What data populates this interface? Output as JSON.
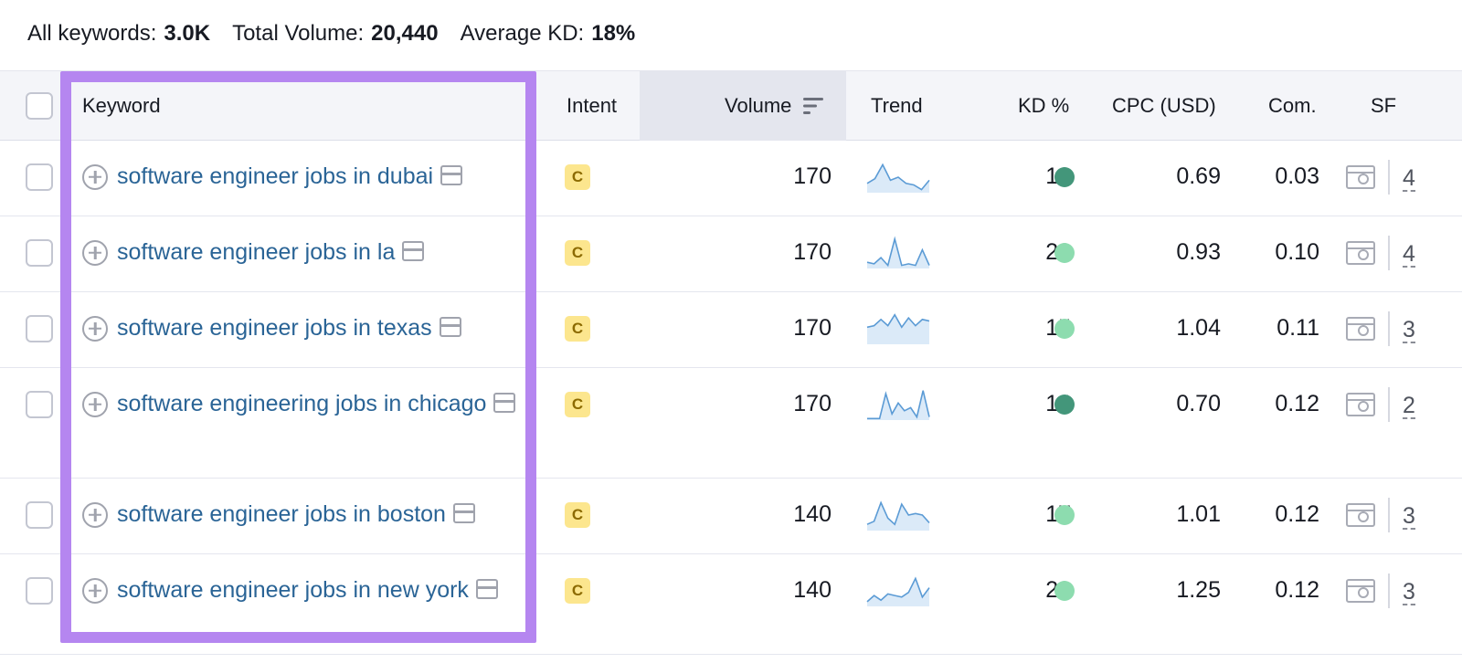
{
  "summary": {
    "all_keywords_label": "All keywords:",
    "all_keywords_value": "3.0K",
    "total_volume_label": "Total Volume:",
    "total_volume_value": "20,440",
    "average_kd_label": "Average KD:",
    "average_kd_value": "18%"
  },
  "columns": {
    "keyword": "Keyword",
    "intent": "Intent",
    "volume": "Volume",
    "trend": "Trend",
    "kd": "KD %",
    "cpc": "CPC (USD)",
    "com": "Com.",
    "sf": "SF"
  },
  "colors": {
    "kd_dark": "#43967a",
    "kd_light": "#8ddcaf",
    "highlight": "#b586f0",
    "link": "#2a6496"
  },
  "rows": [
    {
      "keyword": "software engineer jobs in dubai",
      "intent": "C",
      "volume": "170",
      "trend": [
        0.3,
        0.45,
        0.9,
        0.4,
        0.5,
        0.3,
        0.25,
        0.1,
        0.4
      ],
      "kd": "12",
      "kd_color": "#43967a",
      "cpc": "0.69",
      "com": "0.03",
      "sf": "4"
    },
    {
      "keyword": "software engineer jobs in la",
      "intent": "C",
      "volume": "170",
      "trend": [
        0.2,
        0.15,
        0.35,
        0.1,
        0.95,
        0.1,
        0.15,
        0.1,
        0.6,
        0.1
      ],
      "kd": "23",
      "kd_color": "#8ddcaf",
      "cpc": "0.93",
      "com": "0.10",
      "sf": "4"
    },
    {
      "keyword": "software engineer jobs in texas",
      "intent": "C",
      "volume": "170",
      "trend": [
        0.55,
        0.6,
        0.8,
        0.6,
        0.95,
        0.55,
        0.85,
        0.6,
        0.8,
        0.75
      ],
      "kd": "15",
      "kd_color": "#8ddcaf",
      "cpc": "1.04",
      "com": "0.11",
      "sf": "3"
    },
    {
      "keyword": "software engineering jobs in chicago",
      "intent": "C",
      "volume": "170",
      "trend": [
        0.05,
        0.05,
        0.05,
        0.85,
        0.2,
        0.55,
        0.3,
        0.4,
        0.1,
        0.95,
        0.1
      ],
      "kd": "14",
      "kd_color": "#43967a",
      "cpc": "0.70",
      "com": "0.12",
      "sf": "2"
    },
    {
      "keyword": "software engineer jobs in boston",
      "intent": "C",
      "volume": "140",
      "trend": [
        0.2,
        0.3,
        0.9,
        0.4,
        0.2,
        0.85,
        0.5,
        0.55,
        0.5,
        0.25
      ],
      "kd": "17",
      "kd_color": "#8ddcaf",
      "cpc": "1.01",
      "com": "0.12",
      "sf": "3"
    },
    {
      "keyword": "software engineer jobs in new york",
      "intent": "C",
      "volume": "140",
      "trend": [
        0.15,
        0.35,
        0.2,
        0.4,
        0.35,
        0.3,
        0.45,
        0.9,
        0.3,
        0.6
      ],
      "kd": "22",
      "kd_color": "#8ddcaf",
      "cpc": "1.25",
      "com": "0.12",
      "sf": "3"
    }
  ]
}
